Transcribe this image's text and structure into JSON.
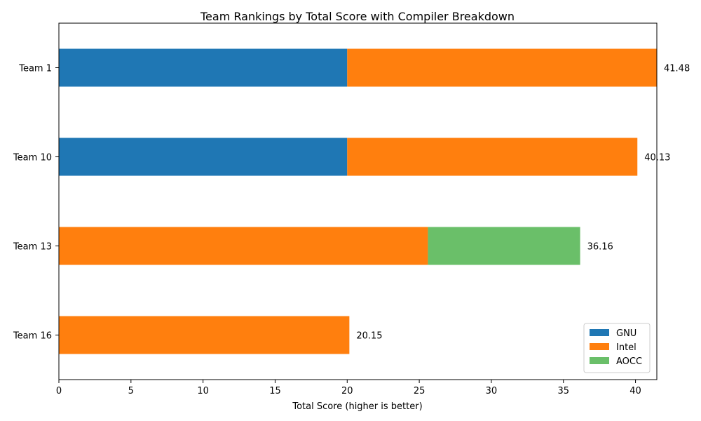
{
  "chart_data": {
    "type": "bar",
    "orientation": "horizontal",
    "stacked": true,
    "title": "Team Rankings by Total Score with Compiler Breakdown",
    "xlabel": "Total Score (higher is better)",
    "ylabel": "",
    "xlim": [
      0,
      41.48
    ],
    "xticks": [
      0,
      5,
      10,
      15,
      20,
      25,
      30,
      35,
      40
    ],
    "categories": [
      "Team 1",
      "Team 10",
      "Team 13",
      "Team 16"
    ],
    "series": [
      {
        "name": "GNU",
        "color": "#1f77b4",
        "values": [
          20.0,
          20.0,
          0,
          0
        ]
      },
      {
        "name": "Intel",
        "color": "#ff7f0e",
        "values": [
          21.48,
          20.13,
          25.6,
          20.15
        ]
      },
      {
        "name": "AOCC",
        "color": "#6abf69",
        "values": [
          0,
          0,
          10.56,
          0
        ]
      }
    ],
    "totals": [
      "41.48",
      "40.13",
      "36.16",
      "20.15"
    ],
    "legend_position": "lower-right",
    "grid": false
  }
}
